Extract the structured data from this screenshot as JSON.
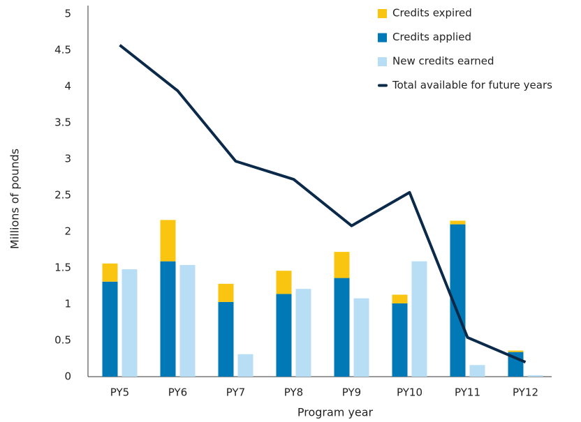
{
  "chart_data": {
    "type": "bar",
    "x_label": "Program year",
    "y_label": "Millions of pounds",
    "categories": [
      "PY5",
      "PY6",
      "PY7",
      "PY8",
      "PY9",
      "PY10",
      "PY11",
      "PY12"
    ],
    "series": [
      {
        "name": "Credits expired",
        "color": "#f9c510",
        "stack": "credits",
        "values": [
          0.25,
          0.57,
          0.25,
          0.32,
          0.36,
          0.12,
          0.05,
          0.02
        ]
      },
      {
        "name": "Credits applied",
        "color": "#0079b6",
        "stack": "credits",
        "values": [
          1.31,
          1.59,
          1.03,
          1.14,
          1.36,
          1.01,
          2.1,
          0.34
        ]
      },
      {
        "name": "New credits earned",
        "color": "#b8def5",
        "stack": "new",
        "values": [
          1.48,
          1.54,
          0.31,
          1.21,
          1.08,
          1.59,
          0.16,
          0.02
        ]
      },
      {
        "name": "Total available for future years",
        "color": "#0b2a4a",
        "type": "line",
        "values": [
          4.57,
          3.94,
          2.97,
          2.72,
          2.08,
          2.54,
          0.54,
          0.2
        ]
      }
    ],
    "ylim": [
      0,
      5
    ],
    "yticks": [
      0,
      0.5,
      1,
      1.5,
      2,
      2.5,
      3,
      3.5,
      4,
      4.5,
      5
    ],
    "grid": false,
    "legend": "top-right"
  }
}
